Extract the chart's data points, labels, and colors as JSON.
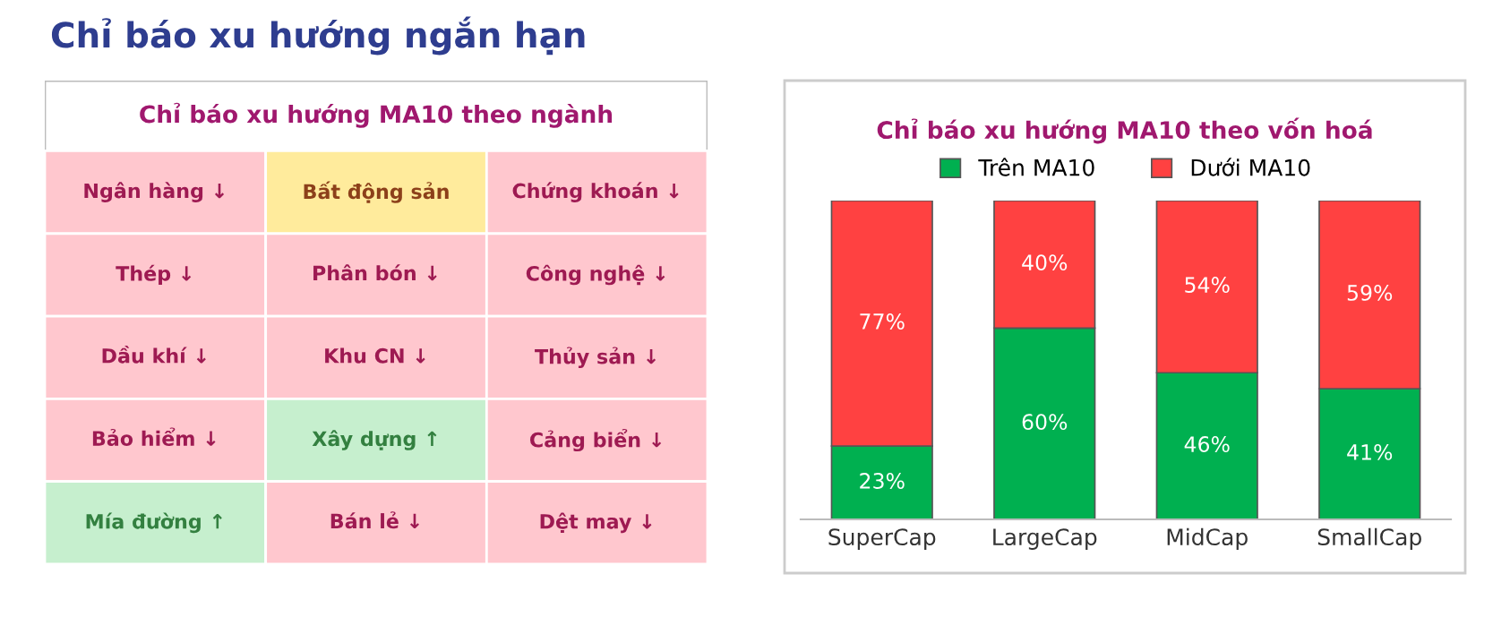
{
  "chart_data": [
    {
      "type": "other",
      "title": "Chỉ báo xu hướng MA10 theo ngành",
      "annotations": [
        "Chỉ báo xu hướng ngắn hạn"
      ],
      "categories": [
        "Ngân hàng ↓",
        "Bất động sản",
        "Chứng khoán ↓",
        "Thép ↓",
        "Phân bón ↓",
        "Công nghệ ↓",
        "Dầu khí ↓",
        "Khu CN ↓",
        "Thủy sản ↓",
        "Bảo hiểm ↓",
        "Xây dựng ↑",
        "Cảng biển ↓",
        "Mía đường ↑",
        "Bán lẻ ↓",
        "Dệt may ↓"
      ],
      "colors": [
        "#ffc7ce",
        "#ffeb9c",
        "#ffc7ce",
        "#ffc7ce",
        "#ffc7ce",
        "#ffc7ce",
        "#ffc7ce",
        "#ffc7ce",
        "#ffc7ce",
        "#ffc7ce",
        "#c6efce",
        "#ffc7ce",
        "#c6efce",
        "#ffc7ce",
        "#ffc7ce"
      ]
    },
    {
      "type": "bar",
      "title": "Chỉ báo xu hướng MA10 theo vốn hoá",
      "stacked": true,
      "legend": "top",
      "grid": false,
      "tick_labels": "x",
      "categories": [
        "SuperCap",
        "LargeCap",
        "MidCap",
        "SmallCap"
      ],
      "series": [
        {
          "name": "Trên MA10",
          "color": "#00b050",
          "values": [
            23,
            60,
            46,
            41
          ],
          "value_labels": [
            "23%",
            "60%",
            "46%",
            "41%"
          ]
        },
        {
          "name": "Dưới MA10",
          "color": "#ff4141",
          "values": [
            77,
            40,
            54,
            59
          ],
          "value_labels": [
            "77%",
            "40%",
            "54%",
            "59%"
          ]
        }
      ]
    }
  ]
}
